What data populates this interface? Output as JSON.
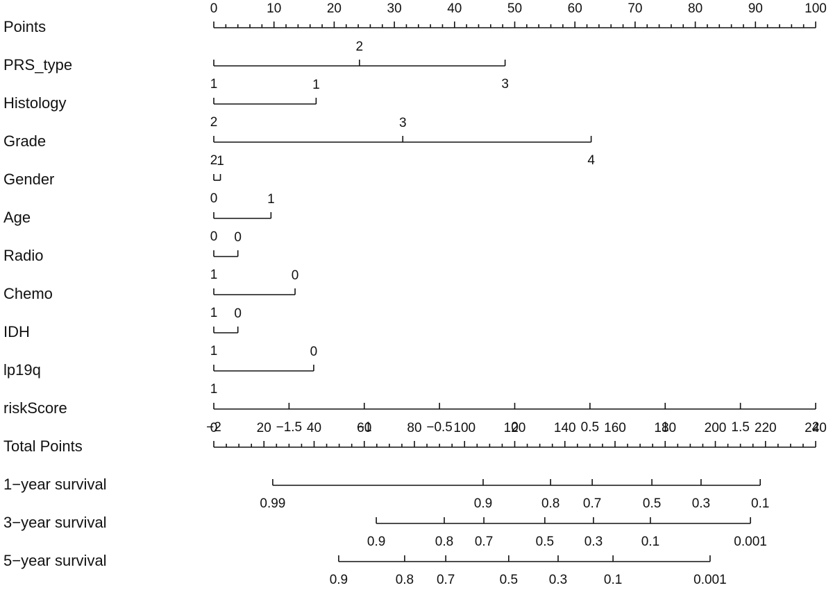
{
  "chart_data": {
    "type": "nomogram",
    "points_axis": {
      "label": "Points",
      "lim": [
        0,
        100
      ],
      "ticks": [
        0,
        10,
        20,
        30,
        40,
        50,
        60,
        70,
        80,
        90,
        100
      ],
      "minor_step": 2
    },
    "rows": [
      {
        "label": "PRS_type",
        "categories": [
          "1",
          "2",
          "3"
        ],
        "points": [
          0,
          24.2,
          48.4
        ]
      },
      {
        "label": "Histology",
        "categories": [
          "2",
          "1"
        ],
        "points": [
          0,
          17
        ]
      },
      {
        "label": "Grade",
        "categories": [
          "2",
          "3",
          "4"
        ],
        "points": [
          0,
          31.4,
          62.7
        ]
      },
      {
        "label": "Gender",
        "categories": [
          "0",
          "1"
        ],
        "points": [
          0,
          1.1
        ]
      },
      {
        "label": "Age",
        "categories": [
          "0",
          "1"
        ],
        "points": [
          0,
          9.5
        ]
      },
      {
        "label": "Radio",
        "categories": [
          "1",
          "0"
        ],
        "points": [
          0,
          4
        ]
      },
      {
        "label": "Chemo",
        "categories": [
          "1",
          "0"
        ],
        "points": [
          0,
          13.5
        ]
      },
      {
        "label": "IDH",
        "categories": [
          "1",
          "0"
        ],
        "points": [
          0,
          4
        ]
      },
      {
        "label": "lp19q",
        "categories": [
          "1",
          "0"
        ],
        "points": [
          0,
          16.6
        ]
      }
    ],
    "score_axis": {
      "label": "riskScore",
      "lim": [
        -2,
        2
      ],
      "ticks": [
        {
          "value": -2,
          "label": "−2"
        },
        {
          "value": -1.5,
          "label": "−1.5"
        },
        {
          "value": -1,
          "label": "−1"
        },
        {
          "value": -0.5,
          "label": "−0.5"
        },
        0,
        0.5,
        1,
        1.5,
        2
      ]
    },
    "total_axis": {
      "label": "Total Points",
      "lim": [
        0,
        240
      ],
      "ticks": [
        0,
        20,
        40,
        60,
        80,
        100,
        120,
        140,
        160,
        180,
        200,
        220,
        240
      ],
      "minor_step": 5
    },
    "survival": [
      {
        "label": "1−year survival",
        "values": [
          0.99,
          0.9,
          0.8,
          0.7,
          0.5,
          0.3,
          0.1
        ],
        "points": [
          23.5,
          107.4,
          134.3,
          150.9,
          174.7,
          194.3,
          217.9
        ]
      },
      {
        "label": "3−year survival",
        "values": [
          0.9,
          0.8,
          0.7,
          0.5,
          0.3,
          0.1,
          0.001
        ],
        "points": [
          64.8,
          91.9,
          107.7,
          132.0,
          151.4,
          174.1,
          214.0
        ]
      },
      {
        "label": "5−year survival",
        "values": [
          0.9,
          0.8,
          0.7,
          0.5,
          0.3,
          0.1,
          0.001
        ],
        "points": [
          49.8,
          76.1,
          92.5,
          117.6,
          137.3,
          159.2,
          197.9
        ]
      }
    ]
  }
}
